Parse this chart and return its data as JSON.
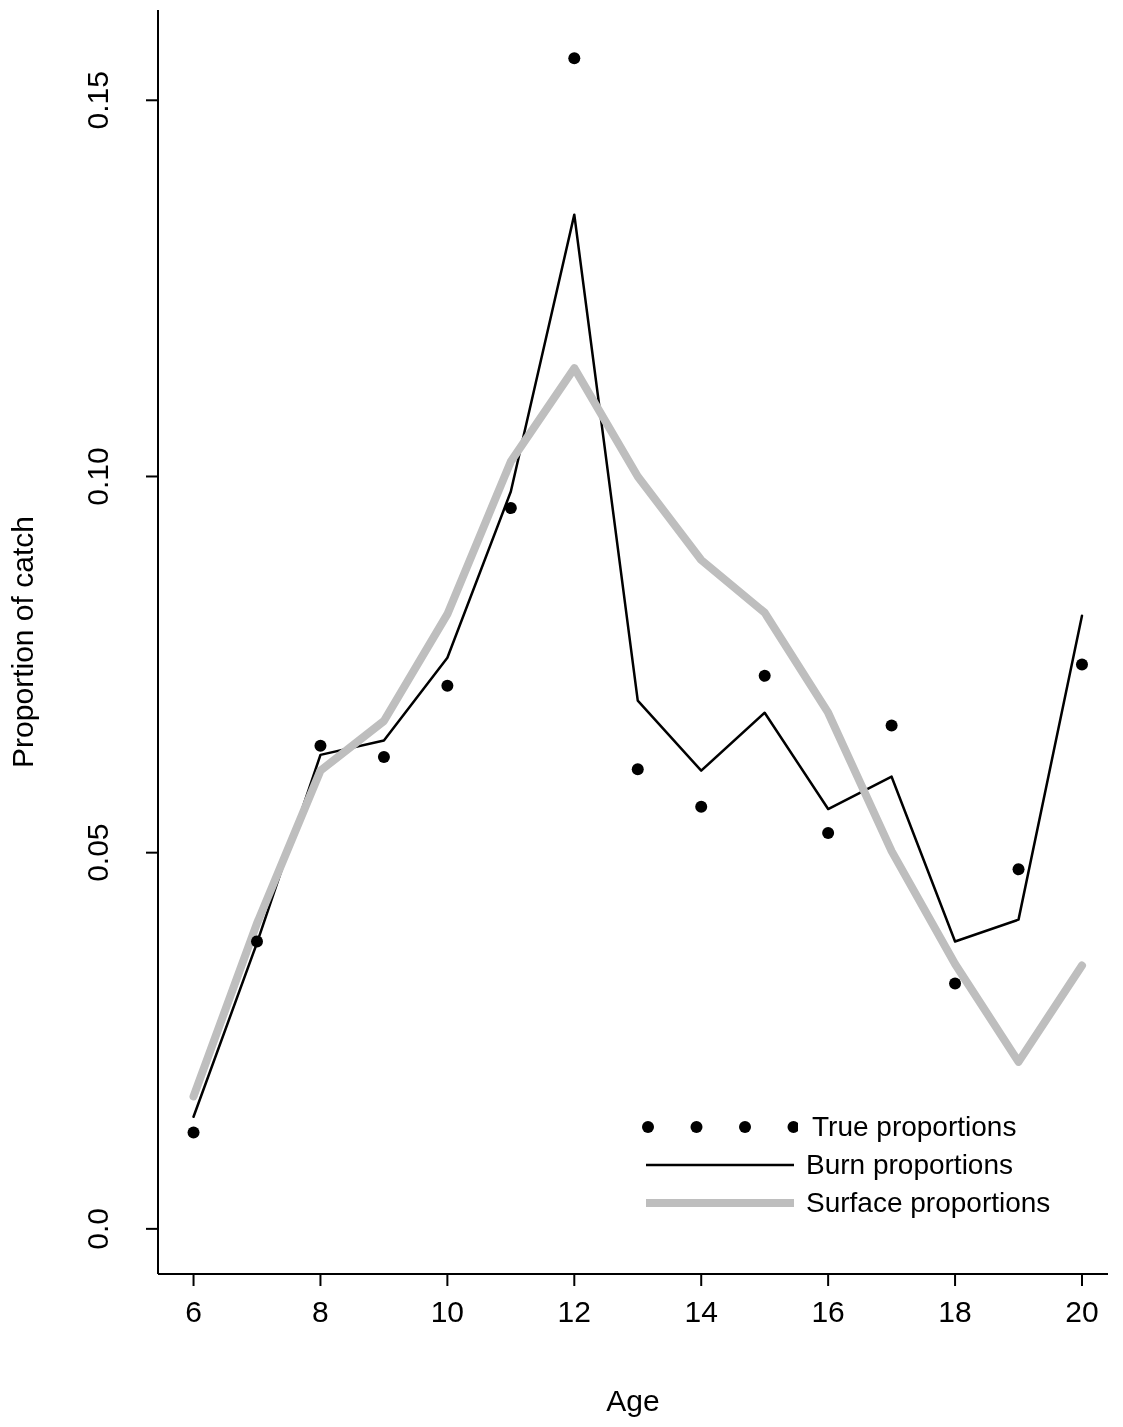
{
  "chart_data": {
    "type": "line",
    "xlabel": "Age",
    "ylabel": "Proportion of catch",
    "x": [
      6,
      7,
      8,
      9,
      10,
      11,
      12,
      13,
      14,
      15,
      16,
      17,
      18,
      19,
      20
    ],
    "series": [
      {
        "name": "True proportions",
        "type": "scatter",
        "color": "#000000",
        "marker": "circle",
        "values": [
          0.0128,
          0.0382,
          0.0642,
          0.0627,
          0.0722,
          0.0958,
          0.1556,
          0.0611,
          0.0561,
          0.0735,
          0.0526,
          0.0669,
          0.0326,
          0.0478,
          0.075
        ]
      },
      {
        "name": "Burn proportions",
        "type": "line",
        "color": "#000000",
        "marker": "none",
        "values": [
          0.0149,
          0.038,
          0.063,
          0.0649,
          0.0759,
          0.098,
          0.1348,
          0.0702,
          0.0609,
          0.0686,
          0.0558,
          0.0601,
          0.0382,
          0.0411,
          0.0815
        ]
      },
      {
        "name": "Surface proportions",
        "type": "line",
        "color": "#bebebe",
        "marker": "none",
        "values": [
          0.0176,
          0.0406,
          0.0609,
          0.0675,
          0.0817,
          0.102,
          0.1144,
          0.1,
          0.0889,
          0.0819,
          0.0686,
          0.0502,
          0.0352,
          0.0222,
          0.035
        ]
      }
    ],
    "xlim": [
      5.44,
      20.41
    ],
    "xticks": [
      6,
      8,
      10,
      12,
      14,
      16,
      18,
      20
    ],
    "ylim": [
      -0.006,
      0.162
    ],
    "yticks": [
      {
        "value": 0,
        "label": "0.0"
      },
      {
        "value": 0.05,
        "label": "0.05"
      },
      {
        "value": 0.1,
        "label": "0.10"
      },
      {
        "value": 0.15,
        "label": "0.15"
      }
    ],
    "grid": false,
    "legend": "bottom right"
  }
}
